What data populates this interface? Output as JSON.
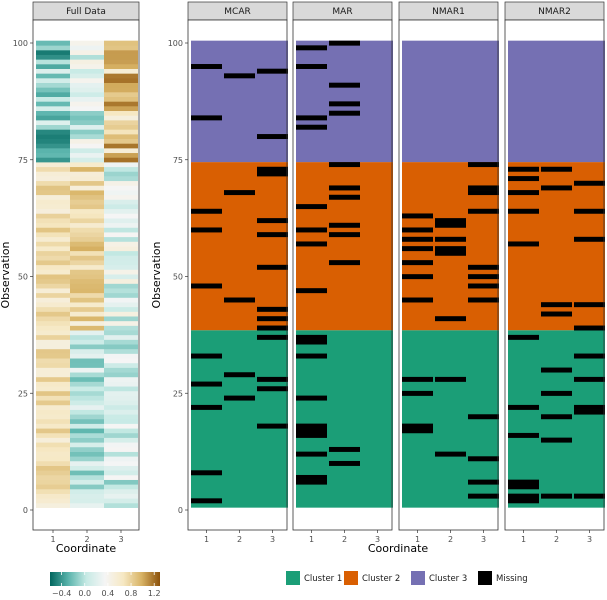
{
  "chart_data": [
    {
      "type": "heatmap",
      "title": "",
      "panel_label": "Full Data",
      "xlabel": "Coordinate",
      "ylabel": "Observation",
      "x_categories": [
        "1",
        "2",
        "3"
      ],
      "y_ticks": [
        0,
        25,
        50,
        75,
        100
      ],
      "y_range": [
        1,
        100
      ],
      "color_scale": {
        "type": "diverging",
        "colors": [
          "#01665e",
          "#5ab4ac",
          "#c7eae5",
          "#f5f5f5",
          "#f6e8c3",
          "#d8b365",
          "#8c510a"
        ],
        "tick_labels": [
          "−0.4",
          "0.0",
          "0.4",
          "0.8",
          "1.2"
        ],
        "tick_values": [
          -0.4,
          0.0,
          0.4,
          0.8,
          1.2
        ],
        "range": [
          -0.6,
          1.3
        ]
      },
      "coordinate_value_ranges": {
        "obs_1_38": {
          "coord1": [
            0.5,
            0.9
          ],
          "coord2": [
            -0.3,
            0.3
          ],
          "coord3": [
            -0.2,
            0.4
          ]
        },
        "obs_39_74": {
          "coord1": [
            0.5,
            0.9
          ],
          "coord2": [
            0.5,
            1.0
          ],
          "coord3": [
            -0.1,
            0.5
          ]
        },
        "obs_75_100": {
          "coord1": [
            -0.6,
            0.2
          ],
          "coord2": [
            -0.2,
            0.5
          ],
          "coord3": [
            0.5,
            1.2
          ]
        }
      }
    },
    {
      "type": "heatmap",
      "title": "",
      "xlabel": "Coordinate",
      "ylabel": "Observation",
      "x_categories": [
        "1",
        "2",
        "3"
      ],
      "y_ticks": [
        0,
        25,
        50,
        75,
        100
      ],
      "y_range": [
        1,
        100
      ],
      "clusters": [
        {
          "name": "Cluster 1",
          "color": "#1b9e77",
          "observations": [
            1,
            38
          ]
        },
        {
          "name": "Cluster 2",
          "color": "#d95f02",
          "observations": [
            39,
            74
          ]
        },
        {
          "name": "Cluster 3",
          "color": "#7570b3",
          "observations": [
            75,
            100
          ]
        }
      ],
      "missing_color": "#000000",
      "panels": [
        {
          "label": "MCAR",
          "missing": {
            "1": [
              2,
              8,
              22,
              27,
              33,
              48,
              60,
              64,
              84,
              95
            ],
            "2": [
              24,
              29,
              45,
              68,
              93
            ],
            "3": [
              18,
              26,
              28,
              37,
              39,
              41,
              43,
              52,
              59,
              62,
              72,
              73,
              80,
              94
            ]
          }
        },
        {
          "label": "MAR",
          "missing": {
            "1": [
              6,
              7,
              12,
              16,
              17,
              18,
              24,
              33,
              36,
              37,
              47,
              57,
              60,
              65,
              82,
              84,
              95,
              99
            ],
            "2": [
              10,
              13,
              53,
              59,
              61,
              67,
              69,
              74,
              85,
              87,
              91,
              100
            ]
          }
        },
        {
          "label": "NMAR1",
          "missing": {
            "1": [
              17,
              18,
              25,
              28,
              45,
              50,
              53,
              56,
              58,
              60,
              63
            ],
            "2": [
              12,
              28,
              41,
              55,
              56,
              58,
              61,
              62
            ],
            "3": [
              3,
              6,
              11,
              20,
              45,
              48,
              50,
              52,
              64,
              68,
              69,
              74
            ]
          }
        },
        {
          "label": "NMAR2",
          "missing": {
            "1": [
              2,
              3,
              5,
              6,
              16,
              22,
              37,
              57,
              64,
              68,
              71,
              73
            ],
            "2": [
              3,
              15,
              20,
              25,
              30,
              42,
              44,
              69,
              73
            ],
            "3": [
              3,
              21,
              22,
              28,
              33,
              39,
              44,
              58,
              64,
              70
            ]
          }
        }
      ],
      "legend": {
        "position": "bottom",
        "entries": [
          {
            "label": "Cluster 1",
            "color": "#1b9e77"
          },
          {
            "label": "Cluster 2",
            "color": "#d95f02"
          },
          {
            "label": "Cluster 3",
            "color": "#7570b3"
          },
          {
            "label": "Missing",
            "color": "#000000"
          }
        ]
      }
    }
  ]
}
